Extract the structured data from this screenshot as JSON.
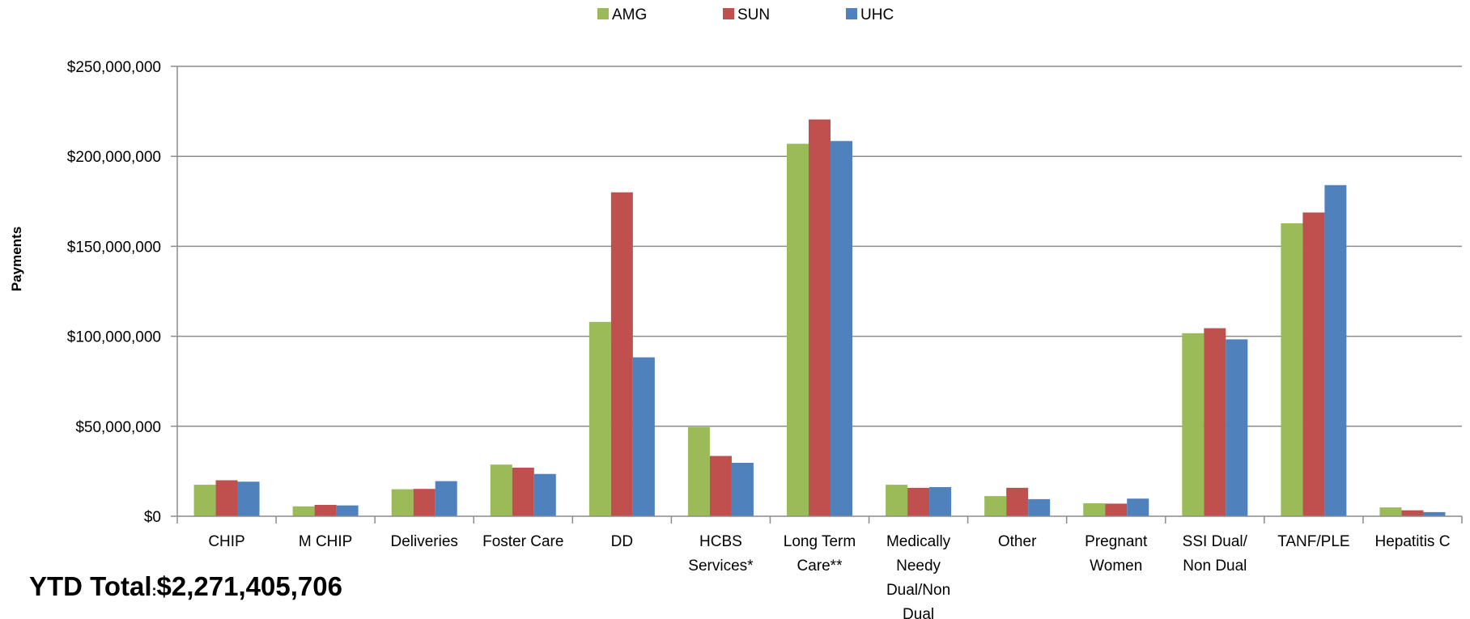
{
  "chart_data": {
    "type": "bar",
    "categories": [
      [
        "CHIP"
      ],
      [
        "M CHIP"
      ],
      [
        "Deliveries"
      ],
      [
        "Foster Care"
      ],
      [
        "DD"
      ],
      [
        "HCBS",
        "Services*"
      ],
      [
        "Long Term",
        "Care**"
      ],
      [
        "Medically",
        "Needy",
        "Dual/Non",
        "Dual"
      ],
      [
        "Other"
      ],
      [
        "Pregnant",
        "Women"
      ],
      [
        "SSI Dual/",
        "Non Dual"
      ],
      [
        "TANF/PLE"
      ],
      [
        "Hepatitis C"
      ]
    ],
    "series": [
      {
        "name": "AMG",
        "color": "#9BBB59",
        "values": [
          17500000,
          5500000,
          15000000,
          28700000,
          108000000,
          49500000,
          207000000,
          17500000,
          11200000,
          7200000,
          101700000,
          162800000,
          4900000
        ]
      },
      {
        "name": "SUN",
        "color": "#C0504D",
        "values": [
          20000000,
          6300000,
          15200000,
          27000000,
          180000000,
          33500000,
          220500000,
          15800000,
          15800000,
          7000000,
          104500000,
          168800000,
          3300000
        ]
      },
      {
        "name": "UHC",
        "color": "#4F81BD",
        "values": [
          19200000,
          6000000,
          19500000,
          23500000,
          88300000,
          29700000,
          208500000,
          16200000,
          9500000,
          9800000,
          98300000,
          184000000,
          2300000
        ]
      }
    ],
    "yticks": [
      "$0",
      "$50,000,000",
      "$100,000,000",
      "$150,000,000",
      "$200,000,000",
      "$250,000,000"
    ],
    "ylim": [
      0,
      250000000
    ],
    "ylabel": "Payments",
    "xlabel": "",
    "title": "",
    "grid": true,
    "legend_position": "top-center"
  },
  "ytd": {
    "label": "YTD Total",
    "separator": ":",
    "value": "$2,271,405,706"
  }
}
